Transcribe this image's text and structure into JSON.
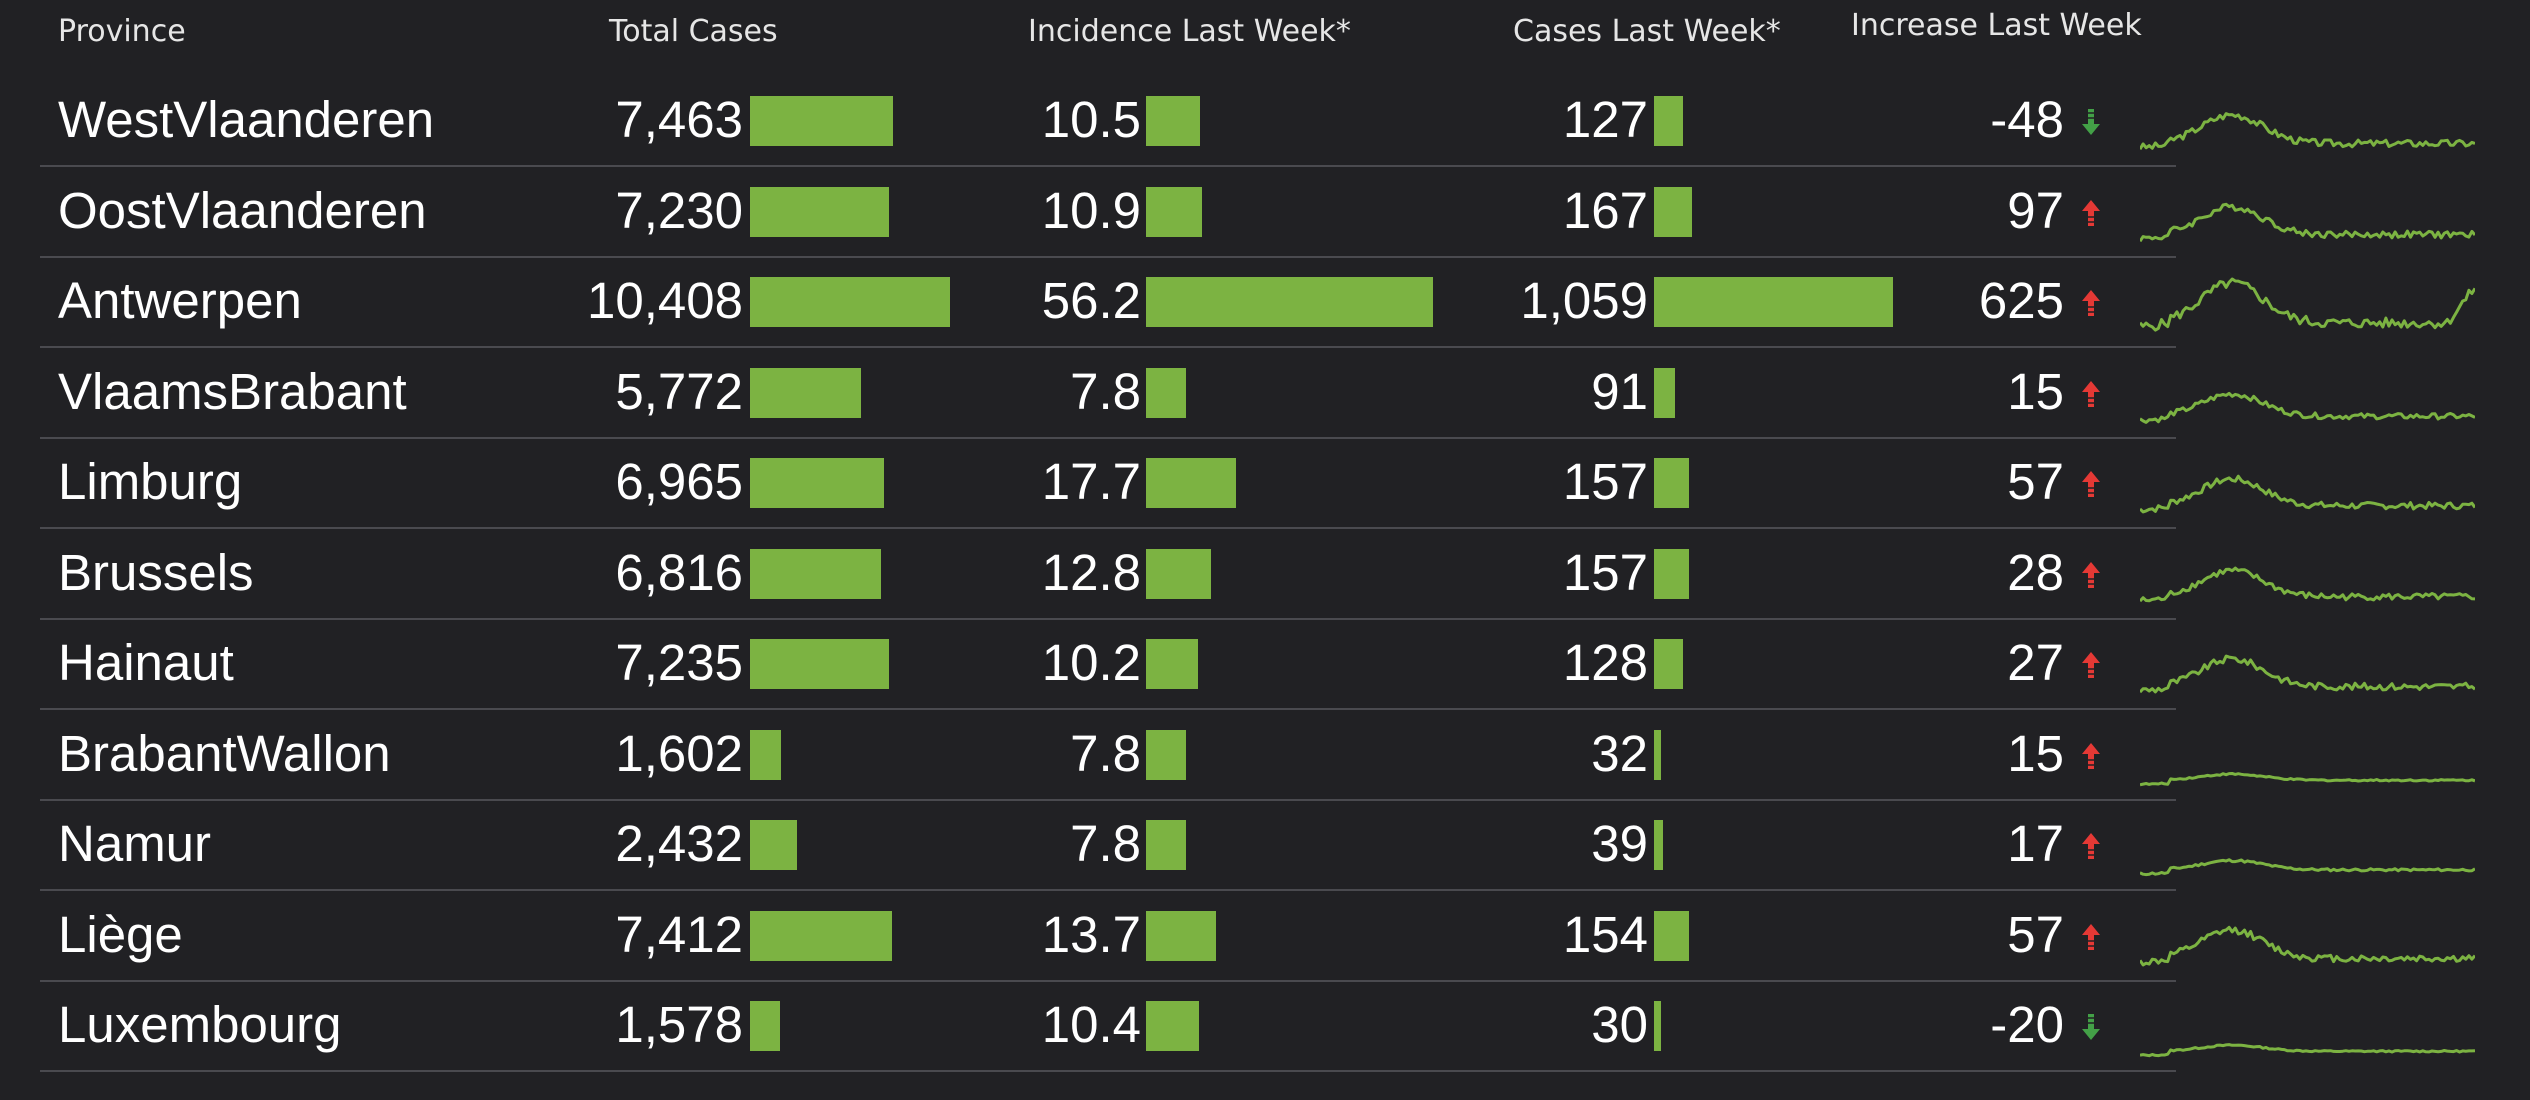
{
  "headers": {
    "province": "Province",
    "total": "Total Cases",
    "incidence": "Incidence Last Week*",
    "cases_week": "Cases Last Week*",
    "increase": "Increase Last Week"
  },
  "colors": {
    "bar": "#7cb342",
    "up": "#e53935",
    "down": "#43a047",
    "sparkline": "#7cb342"
  },
  "rows": [
    {
      "name": "WestVlaanderen",
      "total": "7,463",
      "incidence": "10.5",
      "cases": "127",
      "increase": "-48",
      "trend": "down"
    },
    {
      "name": "OostVlaanderen",
      "total": "7,230",
      "incidence": "10.9",
      "cases": "167",
      "increase": "97",
      "trend": "up"
    },
    {
      "name": "Antwerpen",
      "total": "10,408",
      "incidence": "56.2",
      "cases": "1,059",
      "increase": "625",
      "trend": "up"
    },
    {
      "name": "VlaamsBrabant",
      "total": "5,772",
      "incidence": "7.8",
      "cases": "91",
      "increase": "15",
      "trend": "up"
    },
    {
      "name": "Limburg",
      "total": "6,965",
      "incidence": "17.7",
      "cases": "157",
      "increase": "57",
      "trend": "up"
    },
    {
      "name": "Brussels",
      "total": "6,816",
      "incidence": "12.8",
      "cases": "157",
      "increase": "28",
      "trend": "up"
    },
    {
      "name": "Hainaut",
      "total": "7,235",
      "incidence": "10.2",
      "cases": "128",
      "increase": "27",
      "trend": "up"
    },
    {
      "name": "BrabantWallon",
      "total": "1,602",
      "incidence": "7.8",
      "cases": "32",
      "increase": "15",
      "trend": "up"
    },
    {
      "name": "Namur",
      "total": "2,432",
      "incidence": "7.8",
      "cases": "39",
      "increase": "17",
      "trend": "up"
    },
    {
      "name": "Liège",
      "total": "7,412",
      "incidence": "13.7",
      "cases": "154",
      "increase": "57",
      "trend": "up"
    },
    {
      "name": "Luxembourg",
      "total": "1,578",
      "incidence": "10.4",
      "cases": "30",
      "increase": "-20",
      "trend": "down"
    }
  ]
}
